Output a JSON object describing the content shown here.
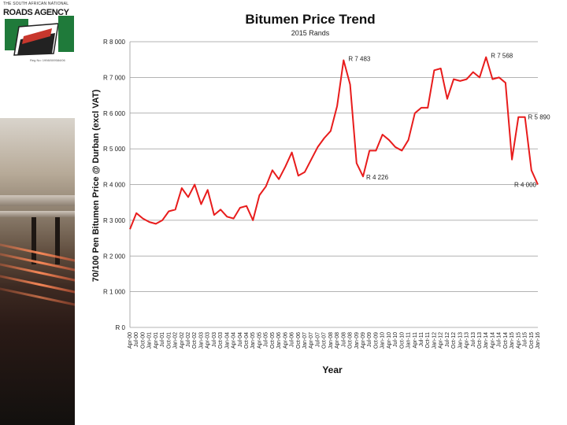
{
  "logo": {
    "top_text": "THE SOUTH AFRICAN NATIONAL",
    "name_text": "ROADS AGENCY",
    "bottom_text": "Reg No: 1998/009584/06"
  },
  "colors": {
    "line": "#e81c1c",
    "grid": "#9a9a9a",
    "logo_green": "#1f7a3a",
    "logo_red": "#c8372d",
    "logo_dark": "#222222"
  },
  "chart_data": {
    "type": "line",
    "title": "Bitumen Price Trend",
    "subtitle": "2015 Rands",
    "xlabel": "Year",
    "ylabel": "70/100 Pen Bitumen Price @ Durban (excl VAT)",
    "ylim": [
      0,
      8000
    ],
    "ytick_labels": [
      "R 0",
      "R 1 000",
      "R 2 000",
      "R 3 000",
      "R 4 000",
      "R 5 000",
      "R 6 000",
      "R 7 000",
      "R 8 000"
    ],
    "ytick_values": [
      0,
      1000,
      2000,
      3000,
      4000,
      5000,
      6000,
      7000,
      8000
    ],
    "grid": "horizontal",
    "x_start": "Apr-00",
    "x_end": "Jan-16",
    "xtick_labels": [
      "Apr-00",
      "Jul-00",
      "Oct-00",
      "Jan-01",
      "Apr-01",
      "Jul-01",
      "Oct-01",
      "Jan-02",
      "Apr-02",
      "Jul-02",
      "Oct-02",
      "Jan-03",
      "Apr-03",
      "Jul-03",
      "Oct-03",
      "Jan-04",
      "Apr-04",
      "Jul-04",
      "Oct-04",
      "Jan-05",
      "Apr-05",
      "Jul-05",
      "Oct-05",
      "Jan-06",
      "Apr-06",
      "Jul-06",
      "Oct-06",
      "Jan-07",
      "Apr-07",
      "Jul-07",
      "Oct-07",
      "Jan-08",
      "Apr-08",
      "Jul-08",
      "Oct-08",
      "Jan-09",
      "Apr-09",
      "Jul-09",
      "Oct-09",
      "Jan-10",
      "Apr-10",
      "Jul-10",
      "Oct-10",
      "Jan-11",
      "Apr-11",
      "Jul-11",
      "Oct-11",
      "Jan-12",
      "Apr-12",
      "Jul-12",
      "Oct-12",
      "Jan-13",
      "Apr-13",
      "Jul-13",
      "Oct-13",
      "Jan-14",
      "Apr-14",
      "Jul-14",
      "Oct-14",
      "Jan-15",
      "Apr-15",
      "Jul-15",
      "Oct-15",
      "Jan-16"
    ],
    "series": [
      {
        "points": [
          [
            "Apr-00",
            2750
          ],
          [
            "Jul-00",
            3200
          ],
          [
            "Oct-00",
            3050
          ],
          [
            "Jan-01",
            2950
          ],
          [
            "Apr-01",
            2900
          ],
          [
            "Jul-01",
            3000
          ],
          [
            "Oct-01",
            3250
          ],
          [
            "Jan-02",
            3300
          ],
          [
            "Apr-02",
            3900
          ],
          [
            "Jul-02",
            3650
          ],
          [
            "Oct-02",
            4000
          ],
          [
            "Jan-03",
            3450
          ],
          [
            "Apr-03",
            3850
          ],
          [
            "Jul-03",
            3150
          ],
          [
            "Oct-03",
            3300
          ],
          [
            "Jan-04",
            3100
          ],
          [
            "Apr-04",
            3050
          ],
          [
            "Jul-04",
            3350
          ],
          [
            "Oct-04",
            3400
          ],
          [
            "Jan-05",
            3000
          ],
          [
            "Apr-05",
            3700
          ],
          [
            "Jul-05",
            3950
          ],
          [
            "Oct-05",
            4400
          ],
          [
            "Jan-06",
            4150
          ],
          [
            "Apr-06",
            4500
          ],
          [
            "Jul-06",
            4900
          ],
          [
            "Oct-06",
            4250
          ],
          [
            "Jan-07",
            4350
          ],
          [
            "Apr-07",
            4700
          ],
          [
            "Jul-07",
            5050
          ],
          [
            "Oct-07",
            5300
          ],
          [
            "Jan-08",
            5500
          ],
          [
            "Apr-08",
            6200
          ],
          [
            "Jul-08",
            7483
          ],
          [
            "Oct-08",
            6800
          ],
          [
            "Jan-09",
            4600
          ],
          [
            "Apr-09",
            4226
          ],
          [
            "Jul-09",
            4950
          ],
          [
            "Oct-09",
            4950
          ],
          [
            "Jan-10",
            5400
          ],
          [
            "Apr-10",
            5250
          ],
          [
            "Jul-10",
            5050
          ],
          [
            "Oct-10",
            4950
          ],
          [
            "Jan-11",
            5250
          ],
          [
            "Apr-11",
            6000
          ],
          [
            "Jul-11",
            6150
          ],
          [
            "Oct-11",
            6150
          ],
          [
            "Jan-12",
            7200
          ],
          [
            "Apr-12",
            7250
          ],
          [
            "Jul-12",
            6400
          ],
          [
            "Oct-12",
            6950
          ],
          [
            "Jan-13",
            6900
          ],
          [
            "Apr-13",
            6950
          ],
          [
            "Jul-13",
            7150
          ],
          [
            "Oct-13",
            7000
          ],
          [
            "Jan-14",
            7568
          ],
          [
            "Apr-14",
            6950
          ],
          [
            "Jul-14",
            7000
          ],
          [
            "Oct-14",
            6850
          ],
          [
            "Jan-15",
            4700
          ],
          [
            "Apr-15",
            5890
          ],
          [
            "Jul-15",
            5890
          ],
          [
            "Oct-15",
            4400
          ],
          [
            "Jan-16",
            4000
          ]
        ]
      }
    ],
    "annotations": [
      {
        "x": "Jul-08",
        "y": 7483,
        "label": "R 7 483"
      },
      {
        "x": "Apr-09",
        "y": 4226,
        "label": "R 4 226"
      },
      {
        "x": "Jan-14",
        "y": 7568,
        "label": "R 7 568"
      },
      {
        "x": "Jul-15",
        "y": 5890,
        "label": "R 5 890"
      },
      {
        "x": "Jan-16",
        "y": 4000,
        "label": "R 4 000"
      }
    ]
  }
}
